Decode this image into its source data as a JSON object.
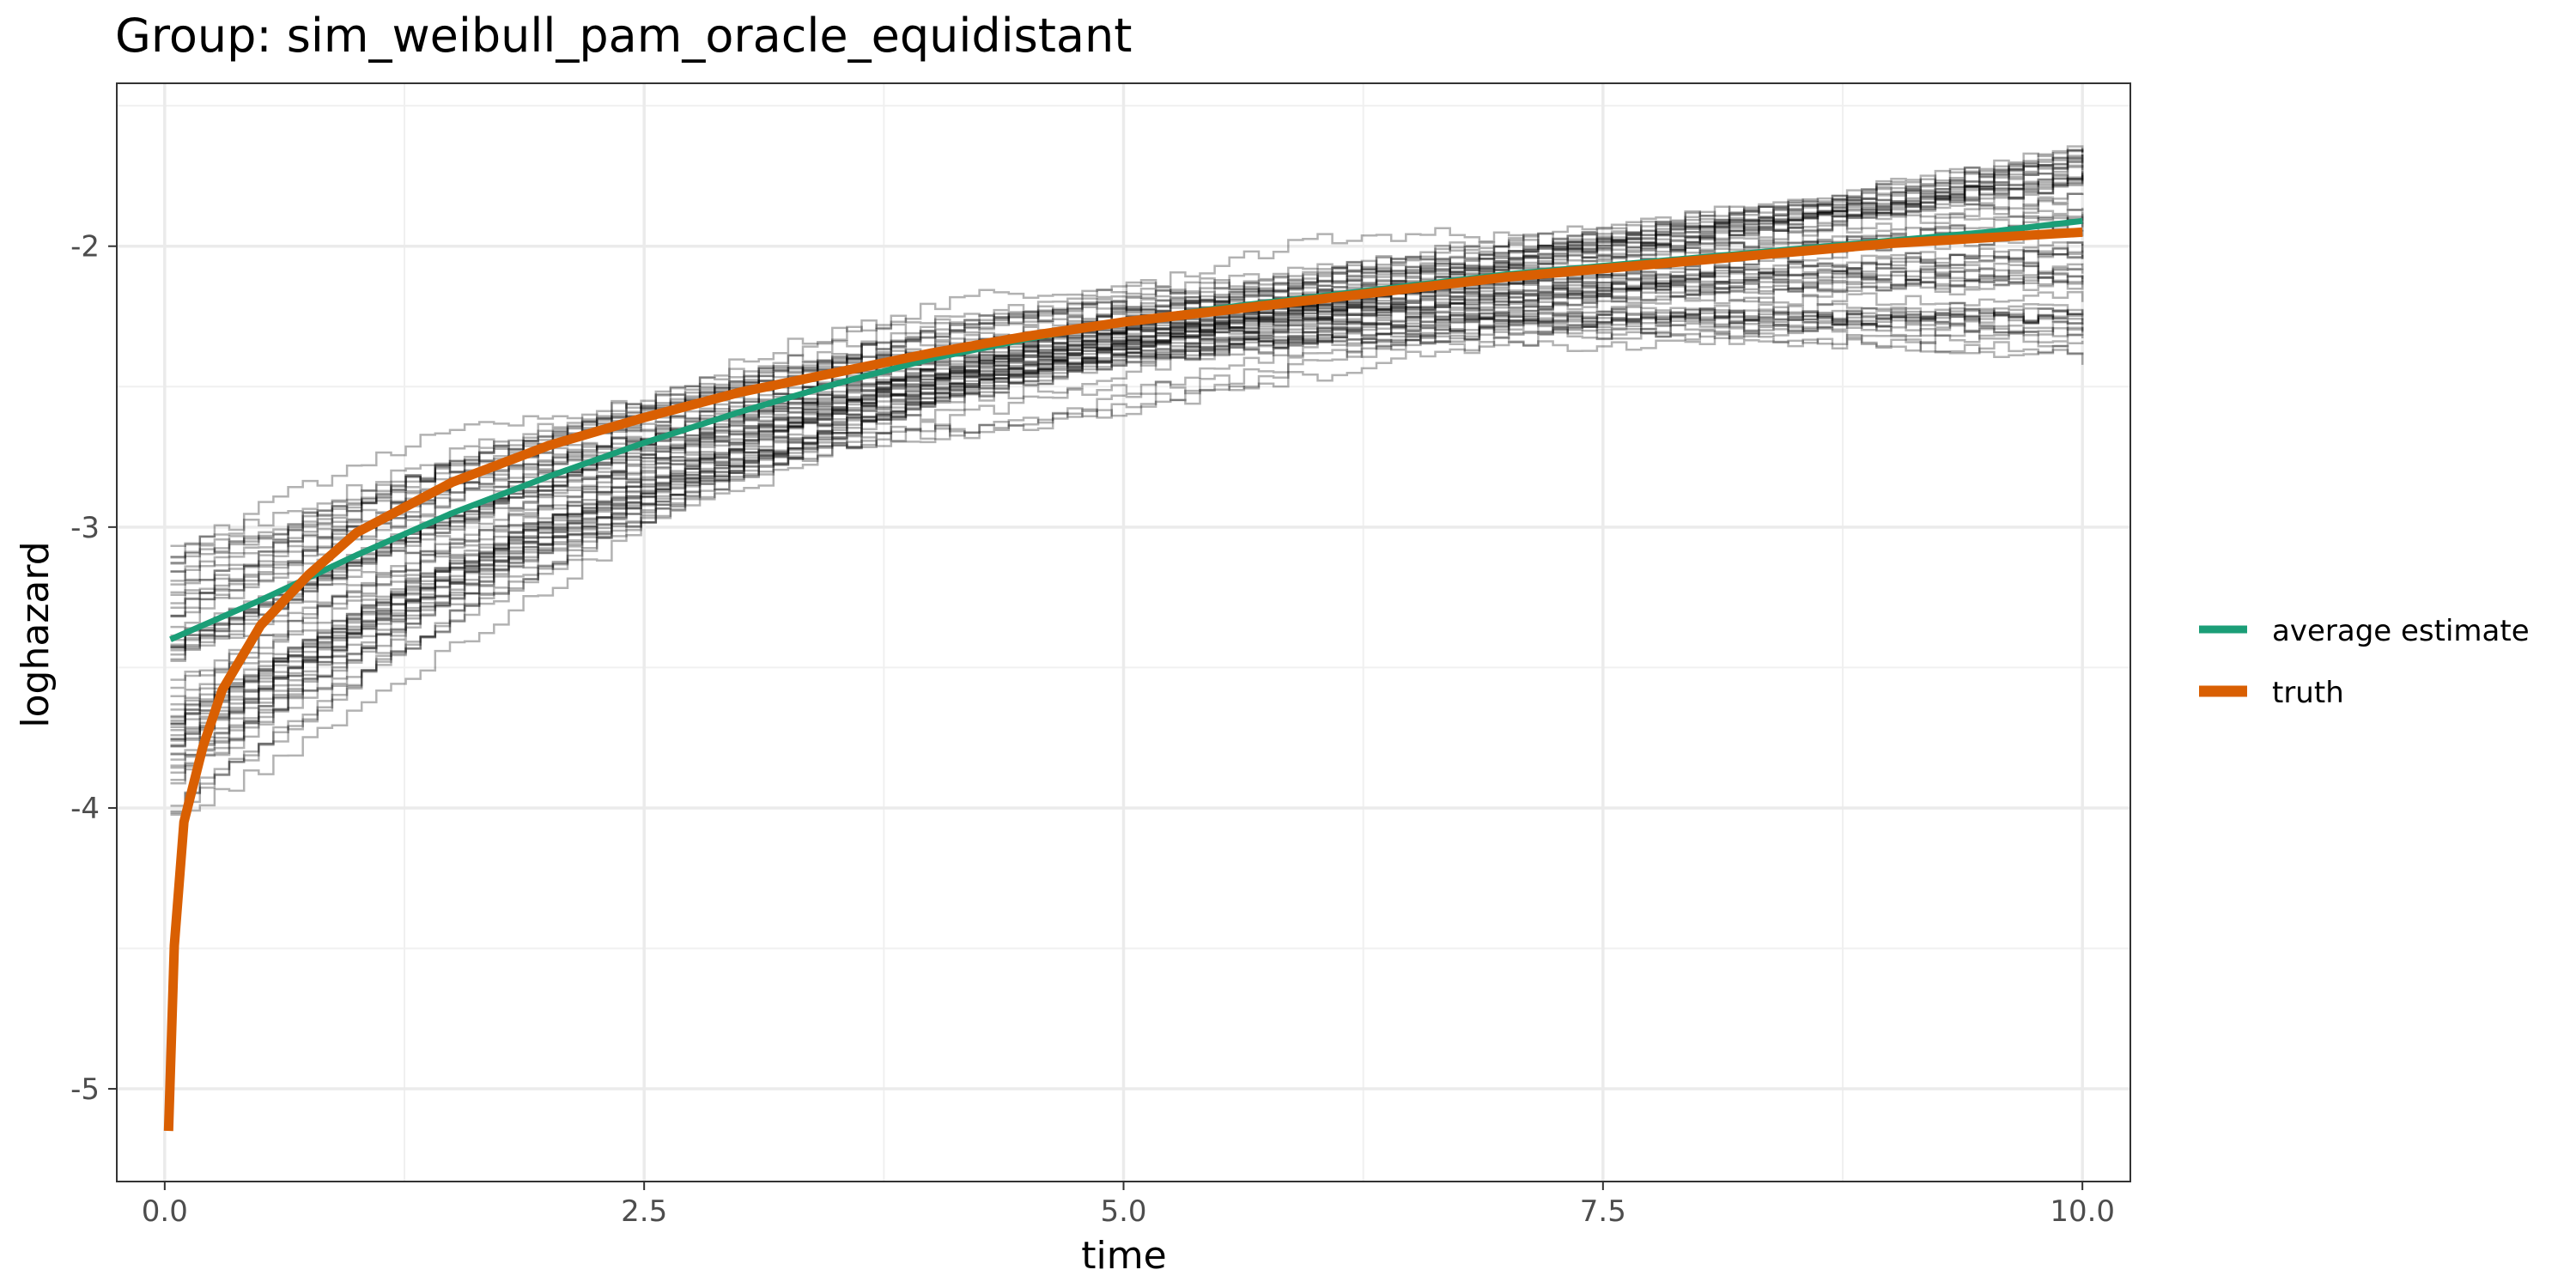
{
  "chart_data": {
    "type": "line",
    "title": "Group: sim_weibull_pam_oracle_equidistant",
    "xlabel": "time",
    "ylabel": "loghazard",
    "xlim": [
      -0.25,
      10.25
    ],
    "ylim": [
      -5.33,
      -1.42
    ],
    "x_ticks": [
      0.0,
      2.5,
      5.0,
      7.5,
      10.0
    ],
    "x_tick_labels": [
      "0.0",
      "2.5",
      "5.0",
      "7.5",
      "10.0"
    ],
    "y_ticks": [
      -5,
      -4,
      -3,
      -2
    ],
    "y_tick_labels": [
      "-5",
      "-4",
      "-3",
      "-2"
    ],
    "grid": true,
    "legend_position": "right",
    "legend": [
      {
        "label": "average estimate",
        "color": "#1B9E77"
      },
      {
        "label": "truth",
        "color": "#D95F02"
      }
    ],
    "series": [
      {
        "name": "average estimate",
        "color": "#1B9E77",
        "x": [
          0.03,
          0.5,
          1.0,
          1.5,
          2.0,
          2.5,
          3.0,
          3.5,
          4.0,
          4.5,
          5.0,
          5.5,
          6.0,
          6.5,
          7.0,
          7.5,
          8.0,
          8.5,
          9.0,
          9.5,
          10.0
        ],
        "y": [
          -3.4,
          -3.26,
          -3.1,
          -2.95,
          -2.82,
          -2.7,
          -2.59,
          -2.49,
          -2.4,
          -2.33,
          -2.27,
          -2.22,
          -2.18,
          -2.14,
          -2.1,
          -2.07,
          -2.04,
          -2.01,
          -1.98,
          -1.95,
          -1.91
        ]
      },
      {
        "name": "truth",
        "color": "#D95F02",
        "x": [
          0.02,
          0.05,
          0.1,
          0.2,
          0.3,
          0.5,
          0.75,
          1.0,
          1.5,
          2.0,
          2.5,
          3.0,
          3.5,
          4.0,
          4.5,
          5.0,
          5.5,
          6.0,
          6.5,
          7.0,
          7.5,
          8.0,
          8.5,
          9.0,
          9.5,
          10.0
        ],
        "y": [
          -5.15,
          -4.49,
          -4.05,
          -3.78,
          -3.58,
          -3.35,
          -3.17,
          -3.02,
          -2.84,
          -2.71,
          -2.61,
          -2.52,
          -2.45,
          -2.38,
          -2.32,
          -2.27,
          -2.23,
          -2.19,
          -2.15,
          -2.11,
          -2.08,
          -2.05,
          -2.02,
          -1.99,
          -1.97,
          -1.95
        ]
      }
    ],
    "simulation_runs": {
      "count": 60,
      "color": "#000000",
      "opacity": 0.3,
      "x_range": [
        0.03,
        10.0
      ],
      "start_range": [
        -4.05,
        -3.05
      ],
      "end_range": [
        -2.4,
        -1.6
      ]
    }
  }
}
